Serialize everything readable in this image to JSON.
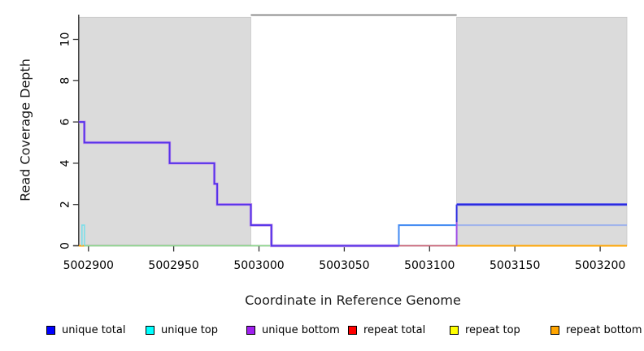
{
  "chart_data": {
    "type": "line",
    "title": "",
    "xlabel": "Coordinate in Reference Genome",
    "ylabel": "Read Coverage Depth",
    "xlim": [
      5002894.3,
      5003215.7
    ],
    "ylim": [
      0,
      11.24
    ],
    "x_ticks": [
      5002900,
      5002950,
      5003000,
      5003050,
      5003100,
      5003150,
      5003200
    ],
    "y_ticks": [
      0,
      2,
      4,
      6,
      8,
      10
    ],
    "grid": "off",
    "legend_position": "bottom",
    "shaded_repeat_regions": [
      {
        "start": 5002894.3,
        "end": 5002995.2,
        "top": 11.07
      },
      {
        "start": 5003115.9,
        "end": 5003215.7,
        "top": 11.07
      }
    ],
    "gap_top_line": {
      "start": 5002995.2,
      "end": 5003115.9,
      "y": 11.18
    },
    "series": [
      {
        "name": "unique total",
        "color": "#0000ff",
        "points": [
          [
            5002894,
            6
          ],
          [
            5002898,
            5
          ],
          [
            5002948,
            4
          ],
          [
            5002974,
            3
          ],
          [
            5002976,
            2
          ],
          [
            5002995,
            1
          ],
          [
            5003007,
            0
          ],
          [
            5003082,
            1
          ],
          [
            5003116,
            2
          ],
          [
            5003216,
            2
          ]
        ]
      },
      {
        "name": "unique top",
        "color": "#00ffff",
        "points": [
          [
            5002894,
            1
          ],
          [
            5002898,
            0
          ],
          [
            5003082,
            1
          ],
          [
            5003216,
            1
          ]
        ]
      },
      {
        "name": "unique bottom",
        "color": "#a020f0",
        "points": [
          [
            5002894,
            5
          ],
          [
            5002948,
            4
          ],
          [
            5002974,
            3
          ],
          [
            5002976,
            2
          ],
          [
            5002995,
            1
          ],
          [
            5003007,
            0
          ],
          [
            5003116,
            1
          ],
          [
            5003216,
            1
          ]
        ]
      },
      {
        "name": "repeat total",
        "color": "#ff0000",
        "points": [
          [
            5002894,
            0
          ],
          [
            5003216,
            0
          ]
        ]
      },
      {
        "name": "repeat top",
        "color": "#ffff00",
        "points": [
          [
            5002894,
            0
          ],
          [
            5003216,
            0
          ]
        ]
      },
      {
        "name": "repeat bottom",
        "color": "#ffa500",
        "points": [
          [
            5002894,
            0
          ],
          [
            5003216,
            0
          ]
        ]
      }
    ],
    "rendered_segments": [
      {
        "name": "zero-line-orange-left",
        "color": "#ffa500",
        "width": 2,
        "points": [
          [
            5002894.3,
            0
          ],
          [
            5002897.6,
            0
          ]
        ]
      },
      {
        "name": "zero-line-green",
        "color": "#8bdb8b",
        "width": 1.6,
        "points": [
          [
            5002897.6,
            0
          ],
          [
            5003007.3,
            0
          ]
        ]
      },
      {
        "name": "zero-line-pink",
        "color": "#cd5c72",
        "width": 1.6,
        "points": [
          [
            5003082,
            0
          ],
          [
            5003115.9,
            0
          ]
        ]
      },
      {
        "name": "zero-line-orange-right",
        "color": "#ffa500",
        "width": 2,
        "points": [
          [
            5003115.9,
            0
          ],
          [
            5003215.7,
            0
          ]
        ]
      },
      {
        "name": "unique-top-spike",
        "color": "#7edee9",
        "width": 1.6,
        "points": [
          [
            5002896.2,
            0
          ],
          [
            5002896.2,
            1
          ],
          [
            5002897.7,
            1
          ],
          [
            5002897.7,
            0
          ]
        ]
      },
      {
        "name": "azure-step-depth1",
        "color": "#4189f2",
        "width": 2,
        "points": [
          [
            5003082,
            0
          ],
          [
            5003082,
            1
          ],
          [
            5003115.9,
            1
          ]
        ]
      },
      {
        "name": "level1-periwinkle",
        "color": "#9fb3ec",
        "width": 2,
        "points": [
          [
            5003115.9,
            1
          ],
          [
            5003215.7,
            1
          ]
        ]
      },
      {
        "name": "main-descending-step",
        "color": "#5533ea",
        "under": "#cfa3e8",
        "width": 2,
        "under_width": 3.4,
        "points": [
          [
            5002894.3,
            6
          ],
          [
            5002897.6,
            6
          ],
          [
            5002897.6,
            5
          ],
          [
            5002947.6,
            5
          ],
          [
            5002947.6,
            4
          ],
          [
            5002973.8,
            4
          ],
          [
            5002973.8,
            3
          ],
          [
            5002975.5,
            3
          ],
          [
            5002975.5,
            2
          ],
          [
            5002995.2,
            2
          ],
          [
            5002995.2,
            1
          ],
          [
            5003007.3,
            1
          ],
          [
            5003007.3,
            0
          ],
          [
            5003082,
            0
          ]
        ]
      },
      {
        "name": "boundary-vertical-purple",
        "color": "#a04fe8",
        "width": 2,
        "points": [
          [
            5003115.9,
            0
          ],
          [
            5003115.9,
            1.15
          ]
        ]
      },
      {
        "name": "boundary-vertical-blue",
        "color": "#2d2de0",
        "width": 2,
        "points": [
          [
            5003115.9,
            1.15
          ],
          [
            5003115.9,
            2
          ]
        ]
      },
      {
        "name": "level2-blue",
        "color": "#2626de",
        "under": "#8585ec",
        "width": 2,
        "under_width": 3.4,
        "points": [
          [
            5003115.9,
            2
          ],
          [
            5003215.7,
            2
          ]
        ]
      }
    ]
  },
  "legend": {
    "items": [
      {
        "label": "unique total",
        "color": "#0000ff"
      },
      {
        "label": "unique top",
        "color": "#00ffff"
      },
      {
        "label": "unique bottom",
        "color": "#a020f0"
      },
      {
        "label": "repeat total",
        "color": "#ff0000"
      },
      {
        "label": "repeat top",
        "color": "#ffff00"
      },
      {
        "label": "repeat bottom",
        "color": "#ffa500"
      }
    ],
    "item_x_positions": [
      57,
      179,
      303,
      428,
      553,
      677
    ]
  },
  "colors": {
    "background": "#ffffff",
    "repeat_shading_fill": "#dbdbdb",
    "repeat_shading_border": "#c8c8c8",
    "axis": "#333333",
    "gap_top_line": "#808080",
    "tick_label": "#000000"
  }
}
